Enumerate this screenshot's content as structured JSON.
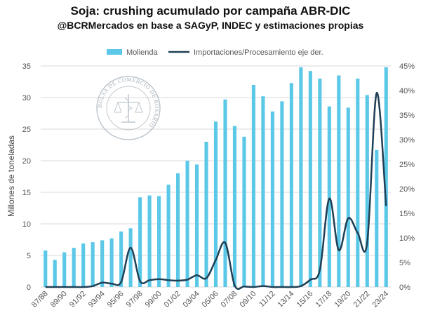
{
  "chart_data": {
    "type": "bar",
    "title": "Soja: crushing acumulado por campaña ABR-DIC",
    "subtitle": "@BCRMercados en base a SAGyP, INDEC y estimaciones propias",
    "ylabel": "Millones de toneladas",
    "ylabel_right": "",
    "ylim": [
      0,
      35
    ],
    "yticks": [
      0,
      5,
      10,
      15,
      20,
      25,
      30,
      35
    ],
    "y2lim": [
      0,
      45
    ],
    "y2ticks": [
      "0%",
      "5%",
      "10%",
      "15%",
      "20%",
      "25%",
      "30%",
      "35%",
      "40%",
      "45%"
    ],
    "grid": true,
    "legend_position": "top",
    "categories": [
      "87/88",
      "88/89",
      "89/90",
      "90/91",
      "91/92",
      "92/93",
      "93/94",
      "94/95",
      "95/96",
      "96/97",
      "97/98",
      "98/99",
      "99/00",
      "00/01",
      "01/02",
      "02/03",
      "03/04",
      "04/05",
      "05/06",
      "06/07",
      "07/08",
      "08/09",
      "09/10",
      "10/11",
      "11/12",
      "12/13",
      "13/14",
      "14/15",
      "15/16",
      "16/17",
      "17/18",
      "18/19",
      "19/20",
      "20/21",
      "21/22",
      "22/23",
      "23/24"
    ],
    "tick_labels": [
      "87/88",
      "89/90",
      "91/92",
      "93/94",
      "95/96",
      "97/98",
      "99/00",
      "01/02",
      "03/04",
      "05/06",
      "07/08",
      "09/10",
      "11/12",
      "13/14",
      "15/16",
      "17/18",
      "19/20",
      "21/22",
      "23/24"
    ],
    "series": [
      {
        "name": "Molienda",
        "kind": "bar",
        "axis": "left",
        "color": "#5bc8e8",
        "values": [
          5.8,
          4.3,
          5.5,
          6.2,
          6.9,
          7.1,
          7.4,
          7.7,
          8.8,
          9.3,
          14.2,
          14.5,
          14.4,
          16.2,
          18.0,
          20.0,
          19.4,
          23.0,
          26.2,
          29.7,
          25.5,
          23.8,
          32.0,
          30.2,
          27.8,
          29.4,
          32.3,
          34.8,
          34.2,
          33.0,
          28.6,
          33.5,
          28.4,
          33.0,
          30.4,
          21.7,
          34.8
        ]
      },
      {
        "name": "Importaciones/Procesamiento eje der.",
        "kind": "line",
        "axis": "right",
        "color": "#1f3f55",
        "values": [
          0,
          0,
          0,
          0,
          0,
          0.2,
          0.9,
          0.7,
          1.0,
          8.0,
          1.2,
          1.4,
          1.6,
          1.4,
          1.3,
          1.5,
          2.4,
          1.8,
          5.5,
          9.0,
          0.3,
          0.1,
          0,
          0.2,
          0,
          0,
          0,
          0.2,
          1.5,
          3.5,
          18.0,
          7.5,
          14.0,
          11.0,
          9.0,
          39.5,
          16.5
        ]
      }
    ]
  },
  "colors": {
    "bar": "#5bc8e8",
    "line": "#1f3f55",
    "grid": "#d9d9d9"
  },
  "watermark": {
    "type": "logo",
    "text": "BOLSA DE COMERCIO DE ROSARIO"
  }
}
